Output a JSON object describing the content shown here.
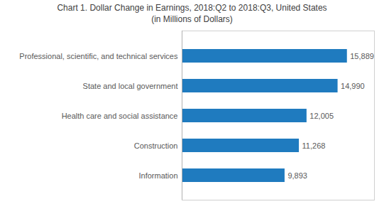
{
  "chart_data": {
    "type": "bar",
    "orientation": "horizontal",
    "title": "Chart 1. Dollar Change in Earnings, 2018:Q2 to 2018:Q3, United States\n(in Millions of Dollars)",
    "categories": [
      "Information",
      "Construction",
      "Health care and social assistance",
      "State and local government",
      "Professional, scientific, and technical services"
    ],
    "values": [
      9893,
      11268,
      12005,
      14990,
      15889
    ],
    "value_labels": [
      "9,893",
      "11,268",
      "12,005",
      "14,990",
      "15,889"
    ],
    "color": "#1f7bbf",
    "xlim": [
      0,
      18500
    ],
    "grid": false,
    "data_labels": true,
    "tick_labels": "y"
  }
}
